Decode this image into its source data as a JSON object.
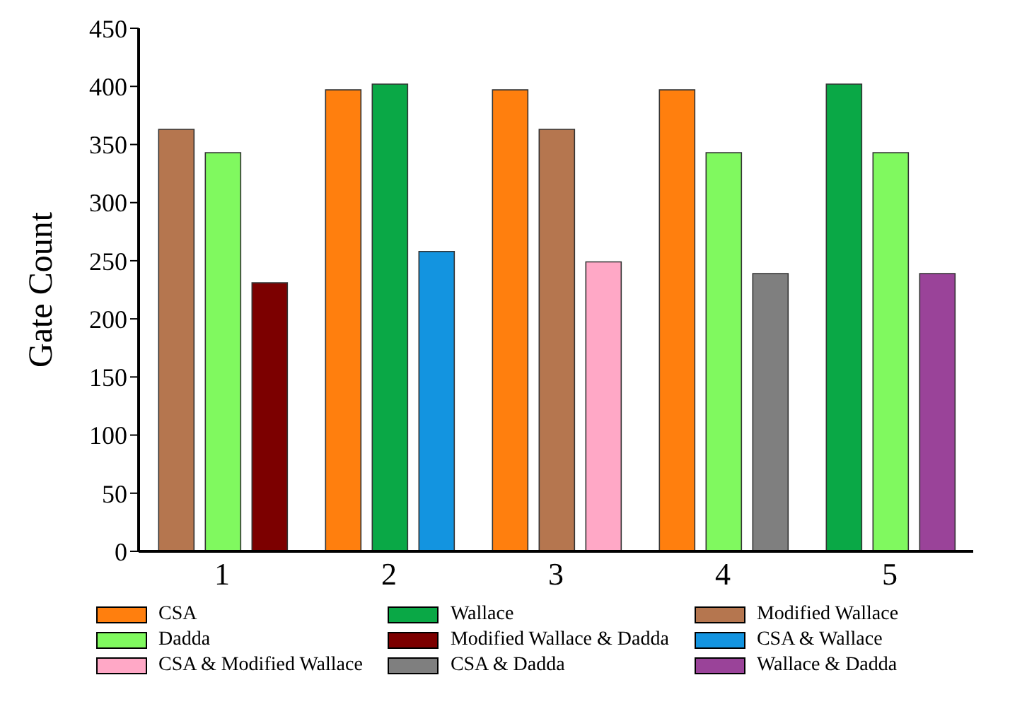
{
  "chart_data": {
    "type": "bar",
    "ylabel": "Gate Count",
    "categories": [
      "1",
      "2",
      "3",
      "4",
      "5"
    ],
    "series": [
      {
        "name": "CSA",
        "color": "#ff7f0e",
        "values": [
          null,
          397,
          397,
          397,
          null
        ]
      },
      {
        "name": "Wallace",
        "color": "#0aa846",
        "values": [
          null,
          402,
          null,
          null,
          402
        ]
      },
      {
        "name": "Modified Wallace",
        "color": "#b5764f",
        "values": [
          363,
          null,
          363,
          null,
          null
        ]
      },
      {
        "name": "Dadda",
        "color": "#80f95f",
        "values": [
          343,
          null,
          null,
          343,
          343
        ]
      },
      {
        "name": "Modified Wallace & Dadda",
        "color": "#7c0000",
        "values": [
          231,
          null,
          null,
          null,
          null
        ]
      },
      {
        "name": "CSA & Wallace",
        "color": "#1394e0",
        "values": [
          null,
          258,
          null,
          null,
          null
        ]
      },
      {
        "name": "CSA & Modified Wallace",
        "color": "#ffa8c6",
        "values": [
          null,
          null,
          249,
          null,
          null
        ]
      },
      {
        "name": "CSA & Dadda",
        "color": "#7f7f7f",
        "values": [
          null,
          null,
          null,
          239,
          null
        ]
      },
      {
        "name": "Wallace & Dadda",
        "color": "#9a4399",
        "values": [
          null,
          null,
          null,
          null,
          239
        ]
      }
    ],
    "ylim": [
      0,
      450
    ],
    "yticks": [
      0,
      50,
      100,
      150,
      200,
      250,
      300,
      350,
      400,
      450
    ],
    "grid": false,
    "legend": "bottom"
  }
}
